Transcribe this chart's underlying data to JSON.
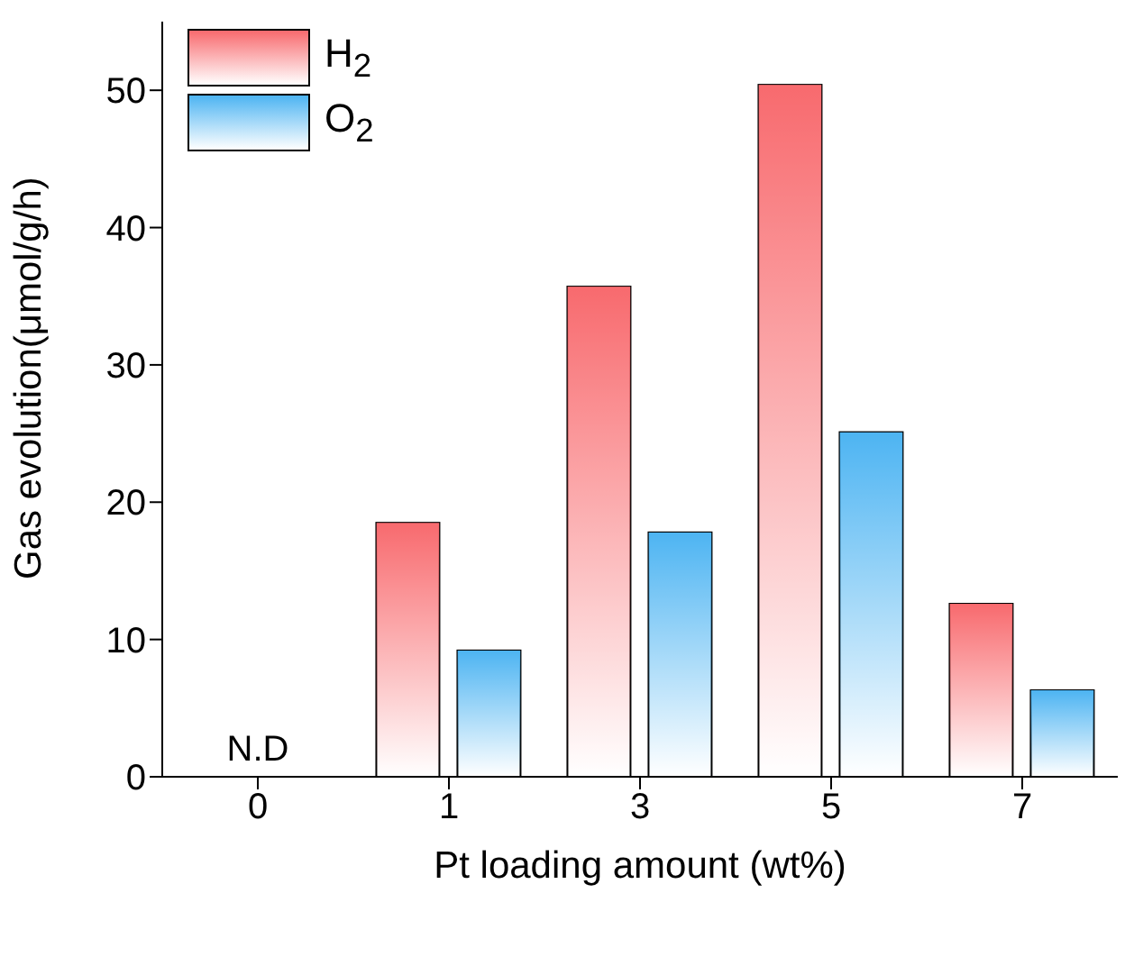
{
  "chart_data": {
    "type": "bar",
    "xlabel": "Pt loading amount (wt%)",
    "ylabel": "Gas evolution(μmol/g/h)",
    "categories": [
      "0",
      "1",
      "3",
      "5",
      "7"
    ],
    "series": [
      {
        "name": "H$_{2}$",
        "color": "#f86a6e",
        "values": [
          null,
          18.5,
          35.7,
          50.4,
          12.6
        ]
      },
      {
        "name": "O$_{2}$",
        "color": "#4db4f2",
        "values": [
          null,
          9.2,
          17.8,
          25.1,
          6.3
        ]
      }
    ],
    "ylim": [
      0,
      55
    ],
    "yticks": [
      0,
      10,
      20,
      30,
      40,
      50
    ],
    "legend": "top left",
    "grid": false,
    "annotations": [
      "N.D"
    ]
  }
}
